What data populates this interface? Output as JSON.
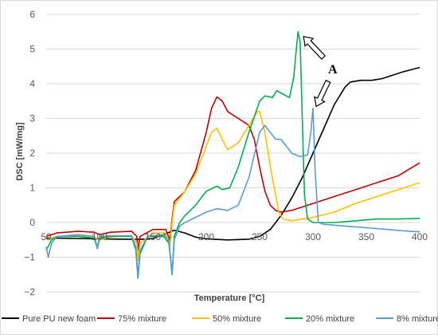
{
  "chart_data": {
    "type": "line",
    "xlabel": "Temperature [°C]",
    "ylabel": "DSC [mW/mg]",
    "xlim": [
      50,
      400
    ],
    "ylim": [
      -2,
      6
    ],
    "xticks": [
      50,
      100,
      150,
      200,
      250,
      300,
      350,
      400
    ],
    "yticks": [
      -2,
      -1,
      0,
      1,
      2,
      3,
      4,
      5,
      6
    ],
    "xtick_labels": [
      "50",
      "100",
      "150",
      "200",
      "250",
      "300",
      "350",
      "400"
    ],
    "ytick_labels": [
      "−2",
      "−1",
      "0",
      "1",
      "2",
      "3",
      "4",
      "5",
      "6"
    ],
    "grid": "horizontal",
    "legend_position": "bottom",
    "annotation": {
      "text": "A",
      "arrow_targets": [
        [
          286,
          5.5
        ],
        [
          300,
          3.3
        ]
      ]
    },
    "series": [
      {
        "name": "Pure PU new foam",
        "color": "#000000",
        "points": [
          [
            50,
            -0.45
          ],
          [
            60,
            -0.45
          ],
          [
            80,
            -0.46
          ],
          [
            100,
            -0.47
          ],
          [
            120,
            -0.48
          ],
          [
            140,
            -0.48
          ],
          [
            150,
            -0.46
          ],
          [
            160,
            -0.35
          ],
          [
            170,
            -0.22
          ],
          [
            180,
            -0.3
          ],
          [
            190,
            -0.42
          ],
          [
            200,
            -0.47
          ],
          [
            220,
            -0.5
          ],
          [
            240,
            -0.48
          ],
          [
            250,
            -0.4
          ],
          [
            260,
            -0.2
          ],
          [
            270,
            0.2
          ],
          [
            280,
            0.7
          ],
          [
            290,
            1.3
          ],
          [
            300,
            2.0
          ],
          [
            310,
            2.7
          ],
          [
            320,
            3.4
          ],
          [
            330,
            3.9
          ],
          [
            335,
            4.05
          ],
          [
            345,
            4.1
          ],
          [
            355,
            4.1
          ],
          [
            365,
            4.15
          ],
          [
            375,
            4.25
          ],
          [
            385,
            4.35
          ],
          [
            400,
            4.47
          ]
        ]
      },
      {
        "name": "75% mixture",
        "color": "#c00000",
        "points": [
          [
            50,
            -0.4
          ],
          [
            60,
            -0.3
          ],
          [
            80,
            -0.25
          ],
          [
            95,
            -0.28
          ],
          [
            100,
            -0.35
          ],
          [
            110,
            -0.28
          ],
          [
            130,
            -0.25
          ],
          [
            135,
            -0.4
          ],
          [
            136,
            -0.8
          ],
          [
            138,
            -0.4
          ],
          [
            150,
            -0.2
          ],
          [
            162,
            -0.2
          ],
          [
            166,
            -0.5
          ],
          [
            168,
            0.1
          ],
          [
            170,
            0.6
          ],
          [
            180,
            0.9
          ],
          [
            190,
            1.5
          ],
          [
            200,
            2.6
          ],
          [
            205,
            3.3
          ],
          [
            210,
            3.62
          ],
          [
            215,
            3.5
          ],
          [
            220,
            3.2
          ],
          [
            230,
            3.0
          ],
          [
            240,
            2.8
          ],
          [
            245,
            2.4
          ],
          [
            250,
            1.6
          ],
          [
            255,
            0.9
          ],
          [
            260,
            0.5
          ],
          [
            265,
            0.35
          ],
          [
            270,
            0.3
          ],
          [
            280,
            0.35
          ],
          [
            300,
            0.55
          ],
          [
            320,
            0.75
          ],
          [
            340,
            0.95
          ],
          [
            360,
            1.15
          ],
          [
            380,
            1.35
          ],
          [
            400,
            1.72
          ]
        ]
      },
      {
        "name": "50% mixture",
        "color": "#ffc000",
        "points": [
          [
            50,
            -0.5
          ],
          [
            60,
            -0.4
          ],
          [
            80,
            -0.38
          ],
          [
            95,
            -0.42
          ],
          [
            100,
            -0.5
          ],
          [
            110,
            -0.42
          ],
          [
            130,
            -0.38
          ],
          [
            135,
            -0.6
          ],
          [
            136,
            -1.1
          ],
          [
            138,
            -0.6
          ],
          [
            150,
            -0.3
          ],
          [
            162,
            -0.3
          ],
          [
            166,
            -0.7
          ],
          [
            168,
            0.0
          ],
          [
            170,
            0.5
          ],
          [
            180,
            0.9
          ],
          [
            190,
            1.4
          ],
          [
            200,
            2.2
          ],
          [
            205,
            2.6
          ],
          [
            210,
            2.72
          ],
          [
            215,
            2.4
          ],
          [
            220,
            2.1
          ],
          [
            230,
            2.3
          ],
          [
            240,
            2.8
          ],
          [
            248,
            3.2
          ],
          [
            250,
            3.2
          ],
          [
            255,
            2.6
          ],
          [
            260,
            1.6
          ],
          [
            265,
            0.8
          ],
          [
            268,
            0.3
          ],
          [
            272,
            0.1
          ],
          [
            280,
            0.05
          ],
          [
            290,
            0.1
          ],
          [
            300,
            0.15
          ],
          [
            320,
            0.3
          ],
          [
            340,
            0.55
          ],
          [
            360,
            0.75
          ],
          [
            380,
            0.95
          ],
          [
            400,
            1.15
          ]
        ]
      },
      {
        "name": "20% mixture",
        "color": "#00b050",
        "points": [
          [
            50,
            -0.8
          ],
          [
            55,
            -0.5
          ],
          [
            60,
            -0.4
          ],
          [
            80,
            -0.4
          ],
          [
            95,
            -0.45
          ],
          [
            98,
            -0.75
          ],
          [
            100,
            -0.45
          ],
          [
            110,
            -0.4
          ],
          [
            130,
            -0.4
          ],
          [
            134,
            -0.8
          ],
          [
            136,
            -1.6
          ],
          [
            138,
            -0.9
          ],
          [
            145,
            -0.4
          ],
          [
            160,
            -0.4
          ],
          [
            165,
            -0.6
          ],
          [
            168,
            -1.5
          ],
          [
            170,
            -0.4
          ],
          [
            175,
            0.0
          ],
          [
            180,
            0.2
          ],
          [
            190,
            0.5
          ],
          [
            200,
            0.9
          ],
          [
            210,
            1.05
          ],
          [
            215,
            0.95
          ],
          [
            222,
            1.0
          ],
          [
            230,
            1.6
          ],
          [
            240,
            2.6
          ],
          [
            250,
            3.5
          ],
          [
            255,
            3.65
          ],
          [
            262,
            3.6
          ],
          [
            266,
            3.8
          ],
          [
            272,
            3.7
          ],
          [
            278,
            3.6
          ],
          [
            282,
            4.2
          ],
          [
            285,
            5.2
          ],
          [
            286,
            5.5
          ],
          [
            288,
            5.2
          ],
          [
            290,
            3.0
          ],
          [
            292,
            0.8
          ],
          [
            295,
            0.1
          ],
          [
            300,
            0.0
          ],
          [
            320,
            0.0
          ],
          [
            340,
            0.05
          ],
          [
            360,
            0.1
          ],
          [
            380,
            0.1
          ],
          [
            400,
            0.12
          ]
        ]
      },
      {
        "name": "8% mixture",
        "color": "#5b9bd5",
        "points": [
          [
            50,
            -0.7
          ],
          [
            52,
            -1.0
          ],
          [
            55,
            -0.6
          ],
          [
            60,
            -0.4
          ],
          [
            80,
            -0.35
          ],
          [
            95,
            -0.4
          ],
          [
            98,
            -0.72
          ],
          [
            100,
            -0.4
          ],
          [
            110,
            -0.38
          ],
          [
            130,
            -0.38
          ],
          [
            134,
            -0.7
          ],
          [
            136,
            -1.55
          ],
          [
            138,
            -0.8
          ],
          [
            145,
            -0.4
          ],
          [
            160,
            -0.35
          ],
          [
            165,
            -0.5
          ],
          [
            168,
            -1.5
          ],
          [
            170,
            -0.5
          ],
          [
            175,
            -0.1
          ],
          [
            180,
            0.0
          ],
          [
            190,
            0.15
          ],
          [
            200,
            0.3
          ],
          [
            210,
            0.4
          ],
          [
            220,
            0.35
          ],
          [
            230,
            0.5
          ],
          [
            240,
            1.3
          ],
          [
            250,
            2.6
          ],
          [
            255,
            2.8
          ],
          [
            260,
            2.6
          ],
          [
            265,
            2.4
          ],
          [
            270,
            2.4
          ],
          [
            275,
            2.2
          ],
          [
            280,
            2.0
          ],
          [
            288,
            1.9
          ],
          [
            295,
            1.95
          ],
          [
            298,
            2.6
          ],
          [
            300,
            3.3
          ],
          [
            302,
            1.5
          ],
          [
            305,
            0.0
          ],
          [
            310,
            -0.05
          ],
          [
            330,
            -0.1
          ],
          [
            350,
            -0.15
          ],
          [
            370,
            -0.2
          ],
          [
            390,
            -0.25
          ],
          [
            400,
            -0.27
          ]
        ]
      }
    ]
  }
}
